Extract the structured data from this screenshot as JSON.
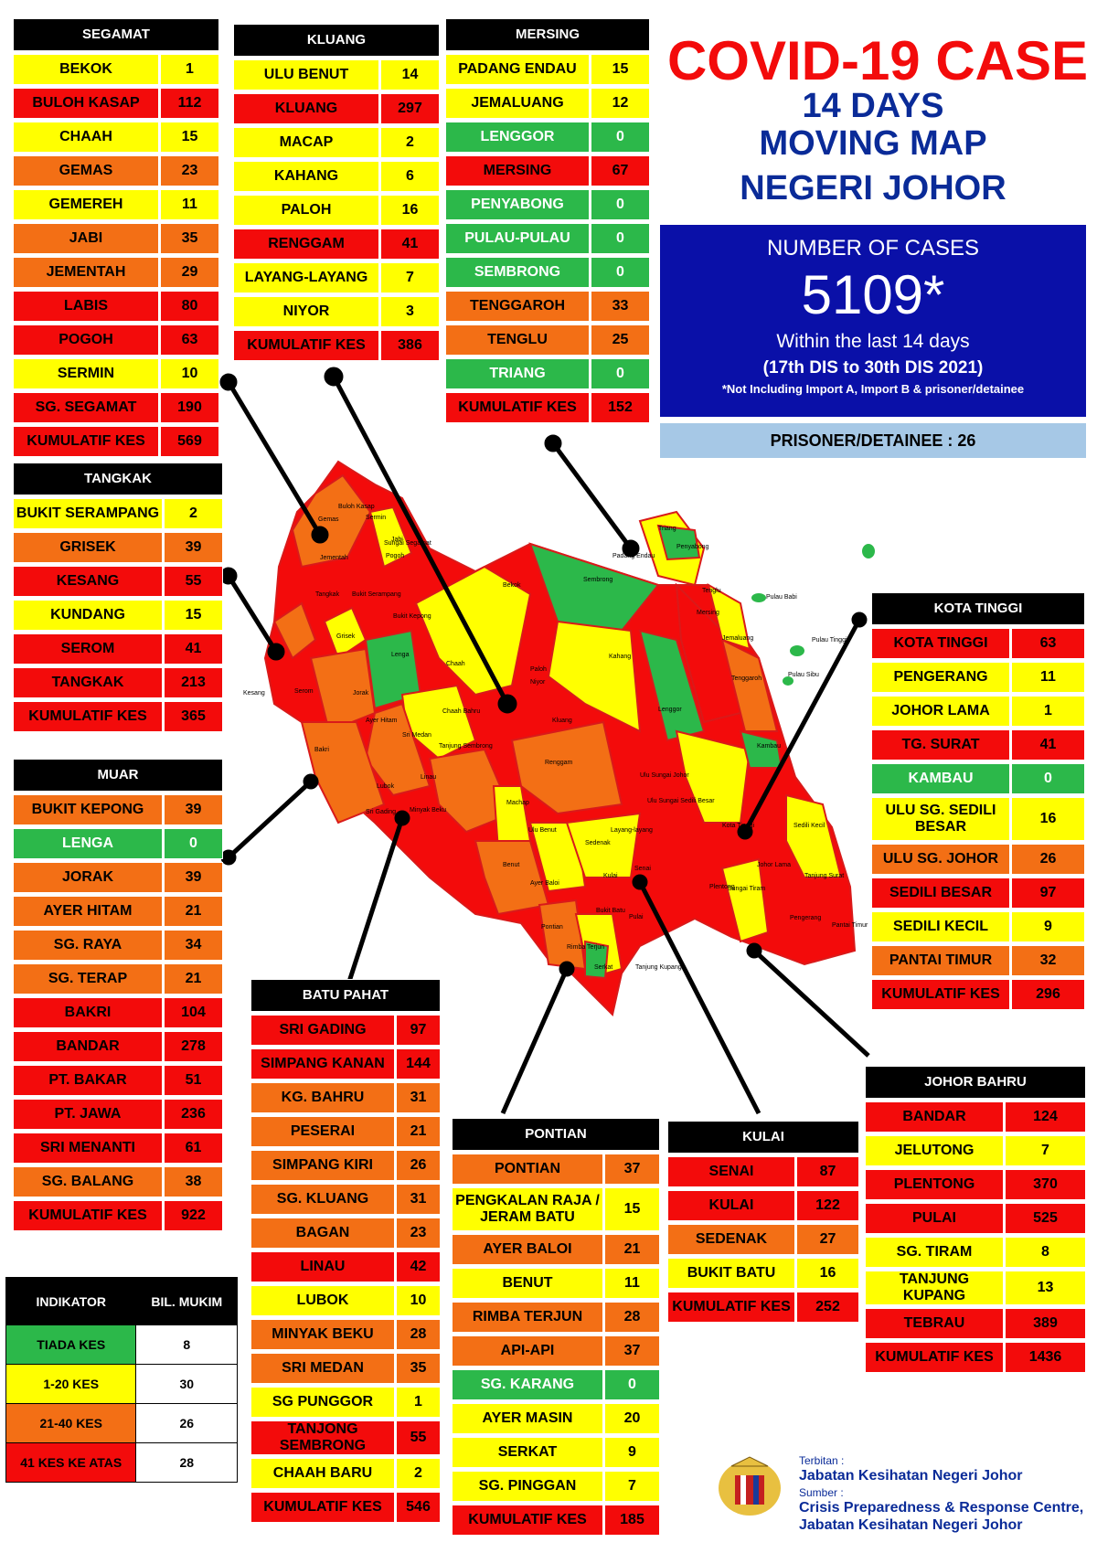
{
  "title": "COVID-19 CASE",
  "subtitle": [
    "14 DAYS",
    "MOVING MAP",
    "NEGERI JOHOR"
  ],
  "cases": {
    "label": "NUMBER OF CASES",
    "value": "5109*",
    "period": "Within the last 14 days",
    "dates": "(17th DIS to 30th DIS 2021)",
    "note": "*Not Including Import A, Import B & prisoner/detainee"
  },
  "prisoner": "PRISONER/DETAINEE : 26",
  "colors": {
    "green": "#2cb84a",
    "yellow": "#ffff00",
    "orange": "#f36f15",
    "red": "#f30b0b",
    "blue": "#0a10a8"
  },
  "districts": {
    "segamat": {
      "name": "SEGAMAT",
      "rows": [
        [
          "BEKOK",
          "1",
          "y"
        ],
        [
          "BULOH KASAP",
          "112",
          "r"
        ],
        [
          "CHAAH",
          "15",
          "y"
        ],
        [
          "GEMAS",
          "23",
          "o"
        ],
        [
          "GEMEREH",
          "11",
          "y"
        ],
        [
          "JABI",
          "35",
          "o"
        ],
        [
          "JEMENTAH",
          "29",
          "o"
        ],
        [
          "LABIS",
          "80",
          "r"
        ],
        [
          "POGOH",
          "63",
          "r"
        ],
        [
          "SERMIN",
          "10",
          "y"
        ],
        [
          "SG. SEGAMAT",
          "190",
          "r"
        ],
        [
          "KUMULATIF KES",
          "569",
          "r"
        ]
      ]
    },
    "kluang": {
      "name": "KLUANG",
      "rows": [
        [
          "ULU BENUT",
          "14",
          "y"
        ],
        [
          "KLUANG",
          "297",
          "r"
        ],
        [
          "MACAP",
          "2",
          "y"
        ],
        [
          "KAHANG",
          "6",
          "y"
        ],
        [
          "PALOH",
          "16",
          "y"
        ],
        [
          "RENGGAM",
          "41",
          "r"
        ],
        [
          "LAYANG-LAYANG",
          "7",
          "y"
        ],
        [
          "NIYOR",
          "3",
          "y"
        ],
        [
          "KUMULATIF KES",
          "386",
          "r"
        ]
      ]
    },
    "mersing": {
      "name": "MERSING",
      "rows": [
        [
          "PADANG ENDAU",
          "15",
          "y"
        ],
        [
          "JEMALUANG",
          "12",
          "y"
        ],
        [
          "LENGGOR",
          "0",
          "g"
        ],
        [
          "MERSING",
          "67",
          "r"
        ],
        [
          "PENYABONG",
          "0",
          "g"
        ],
        [
          "PULAU-PULAU",
          "0",
          "g"
        ],
        [
          "SEMBRONG",
          "0",
          "g"
        ],
        [
          "TENGGAROH",
          "33",
          "o"
        ],
        [
          "TENGLU",
          "25",
          "o"
        ],
        [
          "TRIANG",
          "0",
          "g"
        ],
        [
          "KUMULATIF KES",
          "152",
          "r"
        ]
      ]
    },
    "tangkak": {
      "name": "TANGKAK",
      "rows": [
        [
          "BUKIT SERAMPANG",
          "2",
          "y"
        ],
        [
          "GRISEK",
          "39",
          "o"
        ],
        [
          "KESANG",
          "55",
          "r"
        ],
        [
          "KUNDANG",
          "15",
          "y"
        ],
        [
          "SEROM",
          "41",
          "r"
        ],
        [
          "TANGKAK",
          "213",
          "r"
        ],
        [
          "KUMULATIF KES",
          "365",
          "r"
        ]
      ]
    },
    "muar": {
      "name": "MUAR",
      "rows": [
        [
          "BUKIT KEPONG",
          "39",
          "o"
        ],
        [
          "LENGA",
          "0",
          "g"
        ],
        [
          "JORAK",
          "39",
          "o"
        ],
        [
          "AYER HITAM",
          "21",
          "o"
        ],
        [
          "SG. RAYA",
          "34",
          "o"
        ],
        [
          "SG. TERAP",
          "21",
          "o"
        ],
        [
          "BAKRI",
          "104",
          "r"
        ],
        [
          "BANDAR",
          "278",
          "r"
        ],
        [
          "PT. BAKAR",
          "51",
          "r"
        ],
        [
          "PT. JAWA",
          "236",
          "r"
        ],
        [
          "SRI MENANTI",
          "61",
          "r"
        ],
        [
          "SG. BALANG",
          "38",
          "o"
        ],
        [
          "KUMULATIF KES",
          "922",
          "r"
        ]
      ]
    },
    "kotatinggi": {
      "name": "KOTA TINGGI",
      "rows": [
        [
          "KOTA TINGGI",
          "63",
          "r"
        ],
        [
          "PENGERANG",
          "11",
          "y"
        ],
        [
          "JOHOR LAMA",
          "1",
          "y"
        ],
        [
          "TG. SURAT",
          "41",
          "r"
        ],
        [
          "KAMBAU",
          "0",
          "g"
        ],
        [
          "ULU SG. SEDILI BESAR",
          "16",
          "y"
        ],
        [
          "ULU  SG. JOHOR",
          "26",
          "o"
        ],
        [
          "SEDILI BESAR",
          "97",
          "r"
        ],
        [
          "SEDILI KECIL",
          "9",
          "y"
        ],
        [
          "PANTAI TIMUR",
          "32",
          "o"
        ],
        [
          "KUMULATIF KES",
          "296",
          "r"
        ]
      ]
    },
    "batupahat": {
      "name": "BATU PAHAT",
      "rows": [
        [
          "SRI GADING",
          "97",
          "r"
        ],
        [
          "SIMPANG KANAN",
          "144",
          "r"
        ],
        [
          "KG. BAHRU",
          "31",
          "o"
        ],
        [
          "PESERAI",
          "21",
          "o"
        ],
        [
          "SIMPANG KIRI",
          "26",
          "o"
        ],
        [
          "SG. KLUANG",
          "31",
          "o"
        ],
        [
          "BAGAN",
          "23",
          "o"
        ],
        [
          "LINAU",
          "42",
          "r"
        ],
        [
          "LUBOK",
          "10",
          "y"
        ],
        [
          "MINYAK BEKU",
          "28",
          "o"
        ],
        [
          "SRI MEDAN",
          "35",
          "o"
        ],
        [
          "SG PUNGGOR",
          "1",
          "y"
        ],
        [
          "TANJONG SEMBRONG",
          "55",
          "r"
        ],
        [
          "CHAAH BARU",
          "2",
          "y"
        ],
        [
          "KUMULATIF KES",
          "546",
          "r"
        ]
      ]
    },
    "pontian": {
      "name": "PONTIAN",
      "rows": [
        [
          "PONTIAN",
          "37",
          "o"
        ],
        [
          "PENGKALAN RAJA / JERAM BATU",
          "15",
          "y"
        ],
        [
          "AYER BALOI",
          "21",
          "o"
        ],
        [
          "BENUT",
          "11",
          "y"
        ],
        [
          "RIMBA TERJUN",
          "28",
          "o"
        ],
        [
          "API-API",
          "37",
          "o"
        ],
        [
          "SG. KARANG",
          "0",
          "g"
        ],
        [
          "AYER MASIN",
          "20",
          "y"
        ],
        [
          "SERKAT",
          "9",
          "y"
        ],
        [
          "SG. PINGGAN",
          "7",
          "y"
        ],
        [
          "KUMULATIF KES",
          "185",
          "r"
        ]
      ]
    },
    "kulai": {
      "name": "KULAI",
      "rows": [
        [
          "SENAI",
          "87",
          "r"
        ],
        [
          "KULAI",
          "122",
          "r"
        ],
        [
          "SEDENAK",
          "27",
          "o"
        ],
        [
          "BUKIT BATU",
          "16",
          "y"
        ],
        [
          "KUMULATIF KES",
          "252",
          "r"
        ]
      ]
    },
    "johorbahru": {
      "name": "JOHOR BAHRU",
      "rows": [
        [
          "BANDAR",
          "124",
          "r"
        ],
        [
          "JELUTONG",
          "7",
          "y"
        ],
        [
          "PLENTONG",
          "370",
          "r"
        ],
        [
          "PULAI",
          "525",
          "r"
        ],
        [
          "SG. TIRAM",
          "8",
          "y"
        ],
        [
          "TANJUNG KUPANG",
          "13",
          "y"
        ],
        [
          "TEBRAU",
          "389",
          "r"
        ],
        [
          "KUMULATIF KES",
          "1436",
          "r"
        ]
      ]
    }
  },
  "legend": {
    "h1": "INDIKATOR",
    "h2": "BIL. MUKIM",
    "rows": [
      [
        "TIADA KES",
        "8",
        "g"
      ],
      [
        "1-20 KES",
        "30",
        "y"
      ],
      [
        "21-40 KES",
        "26",
        "o"
      ],
      [
        "41 KES KE ATAS",
        "28",
        "r"
      ]
    ]
  },
  "credits": {
    "l1": "Terbitan :",
    "l2": "Jabatan Kesihatan Negeri Johor",
    "l3": "Sumber :",
    "l4": "Crisis Preparedness & Response Centre,",
    "l5": "Jabatan Kesihatan Negeri Johor"
  },
  "map_labels": [
    "Gemas",
    "Buloh Kasap",
    "Sermin",
    "Jabi",
    "Jementah",
    "Sungai Segamat",
    "Pogoh",
    "Bukit Serampang",
    "Tangkak",
    "Bukit Kepong",
    "Grisek",
    "Lenga",
    "Kesang",
    "Serom",
    "Chaah",
    "Bekok",
    "Sembrong",
    "Paloh",
    "Kahang",
    "Niyor",
    "Lenggor",
    "Mersing",
    "Jemaluang",
    "Tenggaroh",
    "Tenglu",
    "Penyabong",
    "Padang Endau",
    "Triang",
    "Pulau Babi",
    "Pulau Tinggi",
    "Pulau Sibu",
    "Jorak",
    "Ayer Hitam",
    "Sri Medan",
    "Chaah Bahru",
    "Kluang",
    "Tanjung Sembrong",
    "Renggam",
    "Bakri",
    "Linau",
    "Lubok",
    "Sri Gading",
    "Minyak Beku",
    "Machap",
    "Ulu Benut",
    "Layang-layang",
    "Ulu Sungai Sedili Besar",
    "Ulu Sungai Johor",
    "Kambau",
    "Kota Tinggi",
    "Sedili Kecil",
    "Johor Lama",
    "Tanjung Surat",
    "Sedenak",
    "Senai",
    "Kulai",
    "Plentong",
    "Bukit Batu",
    "Pulai",
    "Pengerang",
    "Pantai Timur",
    "Tanjung Kupang",
    "Serkat",
    "Pontian",
    "Rimba Terjun",
    "Benut",
    "Ayer Baloi",
    "Sungai Tiram"
  ]
}
